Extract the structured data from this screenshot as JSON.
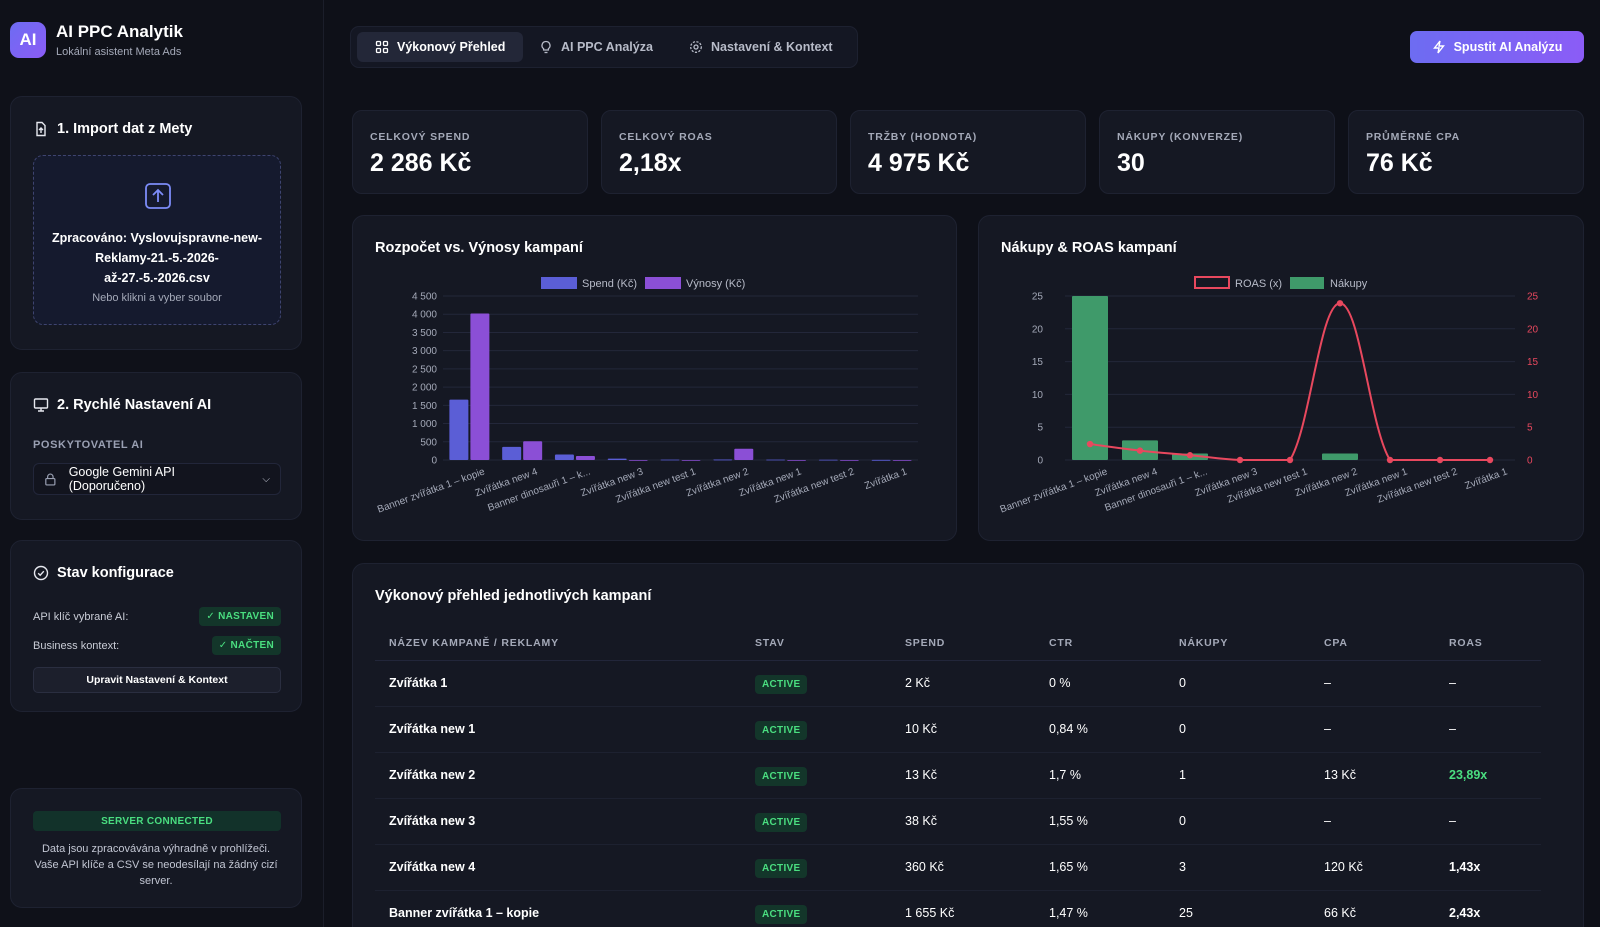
{
  "app": {
    "logo": "AI",
    "title": "AI PPC Analytik",
    "subtitle": "Lokální asistent Meta Ads"
  },
  "import_card": {
    "title": "1. Import dat z Mety",
    "icon": "file-upload-icon",
    "processed": "Zpracováno: Vyslovujspravne-new-Reklamy-21.-5.-2026-až-27.-5.-2026.csv",
    "hint": "Nebo klikni a vyber soubor"
  },
  "ai_card": {
    "title": "2. Rychlé Nastavení AI",
    "provider_label": "POSKYTOVATEL AI",
    "provider_value": "Google Gemini API (Doporučeno)"
  },
  "config_card": {
    "title": "Stav konfigurace",
    "api_label": "API klíč vybrané AI:",
    "api_status": "✓ NASTAVEN",
    "context_label": "Business kontext:",
    "context_status": "✓ NAČTEN",
    "edit_button": "Upravit Nastavení & Kontext"
  },
  "server_card": {
    "status": "SERVER CONNECTED",
    "text": "Data jsou zpracovávána výhradně v prohlížeči. Vaše API klíče a CSV se neodesílají na žádný cizí server."
  },
  "tabs": [
    {
      "label": "Výkonový Přehled",
      "icon": "grid-icon"
    },
    {
      "label": "AI PPC Analýza",
      "icon": "bulb-icon"
    },
    {
      "label": "Nastavení & Kontext",
      "icon": "gear-icon"
    }
  ],
  "run_button": "Spustit AI Analýzu",
  "kpis": [
    {
      "label": "CELKOVÝ SPEND",
      "value": "2 286 Kč"
    },
    {
      "label": "CELKOVÝ ROAS",
      "value": "2,18x"
    },
    {
      "label": "TRŽBY (HODNOTA)",
      "value": "4 975 Kč"
    },
    {
      "label": "NÁKUPY (KONVERZE)",
      "value": "30"
    },
    {
      "label": "PRŮMĚRNÉ CPA",
      "value": "76 Kč"
    }
  ],
  "colors": {
    "spend": "#5b5ed6",
    "revenue": "#8b4fd6",
    "purchases": "#3f9a6a",
    "roas": "#e8485e",
    "accent": "#7c6cf2"
  },
  "chart_data": [
    {
      "type": "bar",
      "title": "Rozpočet vs. Výnosy kampaní",
      "categories": [
        "Banner zvířátka 1 – kopie",
        "Zvířátka new 4",
        "Banner dinosauři 1 – k...",
        "Zvířátka new 3",
        "Zvířátka new test 1",
        "Zvířátka new 2",
        "Zvířátka new 1",
        "Zvířátka new test 2",
        "Zvířátka 1"
      ],
      "series": [
        {
          "name": "Spend (Kč)",
          "values": [
            1655,
            360,
            150,
            38,
            10,
            13,
            10,
            8,
            2
          ]
        },
        {
          "name": "Výnosy (Kč)",
          "values": [
            4020,
            515,
            110,
            0,
            0,
            310,
            0,
            0,
            0
          ]
        }
      ],
      "ylim": [
        0,
        4500
      ],
      "yticks": [
        "0",
        "500",
        "1 000",
        "1 500",
        "2 000",
        "2 500",
        "3 000",
        "3 500",
        "4 000",
        "4 500"
      ],
      "legend": "top"
    },
    {
      "type": "bar",
      "title": "Nákupy & ROAS kampaní",
      "categories": [
        "Banner zvířátka 1 – kopie",
        "Zvířátka new 4",
        "Banner dinosauři 1 – k...",
        "Zvířátka new 3",
        "Zvířátka new test 1",
        "Zvířátka new 2",
        "Zvířátka new 1",
        "Zvířátka new test 2",
        "Zvířátka 1"
      ],
      "series": [
        {
          "name": "ROAS (x)",
          "type": "line",
          "values": [
            2.43,
            1.43,
            0.73,
            0,
            0,
            23.89,
            0,
            0,
            0
          ]
        },
        {
          "name": "Nákupy",
          "type": "bar",
          "values": [
            25,
            3,
            1,
            0,
            0,
            1,
            0,
            0,
            0
          ]
        }
      ],
      "ylim": [
        0,
        25
      ],
      "y2lim": [
        0,
        25
      ],
      "yticks": [
        "0",
        "5",
        "10",
        "15",
        "20",
        "25"
      ],
      "legend": "top"
    }
  ],
  "table": {
    "title": "Výkonový přehled jednotlivých kampaní",
    "headers": [
      "NÁZEV KAMPANĚ / REKLAMY",
      "STAV",
      "SPEND",
      "CTR",
      "NÁKUPY",
      "CPA",
      "ROAS"
    ],
    "rows": [
      {
        "name": "Zvířátka 1",
        "status": "ACTIVE",
        "spend": "2 Kč",
        "ctr": "0 %",
        "purchases": "0",
        "cpa": "–",
        "roas": "–"
      },
      {
        "name": "Zvířátka new 1",
        "status": "ACTIVE",
        "spend": "10 Kč",
        "ctr": "0,84 %",
        "purchases": "0",
        "cpa": "–",
        "roas": "–"
      },
      {
        "name": "Zvířátka new 2",
        "status": "ACTIVE",
        "spend": "13 Kč",
        "ctr": "1,7 %",
        "purchases": "1",
        "cpa": "13 Kč",
        "roas": "23,89x"
      },
      {
        "name": "Zvířátka new 3",
        "status": "ACTIVE",
        "spend": "38 Kč",
        "ctr": "1,55 %",
        "purchases": "0",
        "cpa": "–",
        "roas": "–"
      },
      {
        "name": "Zvířátka new 4",
        "status": "ACTIVE",
        "spend": "360 Kč",
        "ctr": "1,65 %",
        "purchases": "3",
        "cpa": "120 Kč",
        "roas": "1,43x"
      },
      {
        "name": "Banner zvířátka 1 – kopie",
        "status": "ACTIVE",
        "spend": "1 655 Kč",
        "ctr": "1,47 %",
        "purchases": "25",
        "cpa": "66 Kč",
        "roas": "2,43x"
      }
    ]
  }
}
